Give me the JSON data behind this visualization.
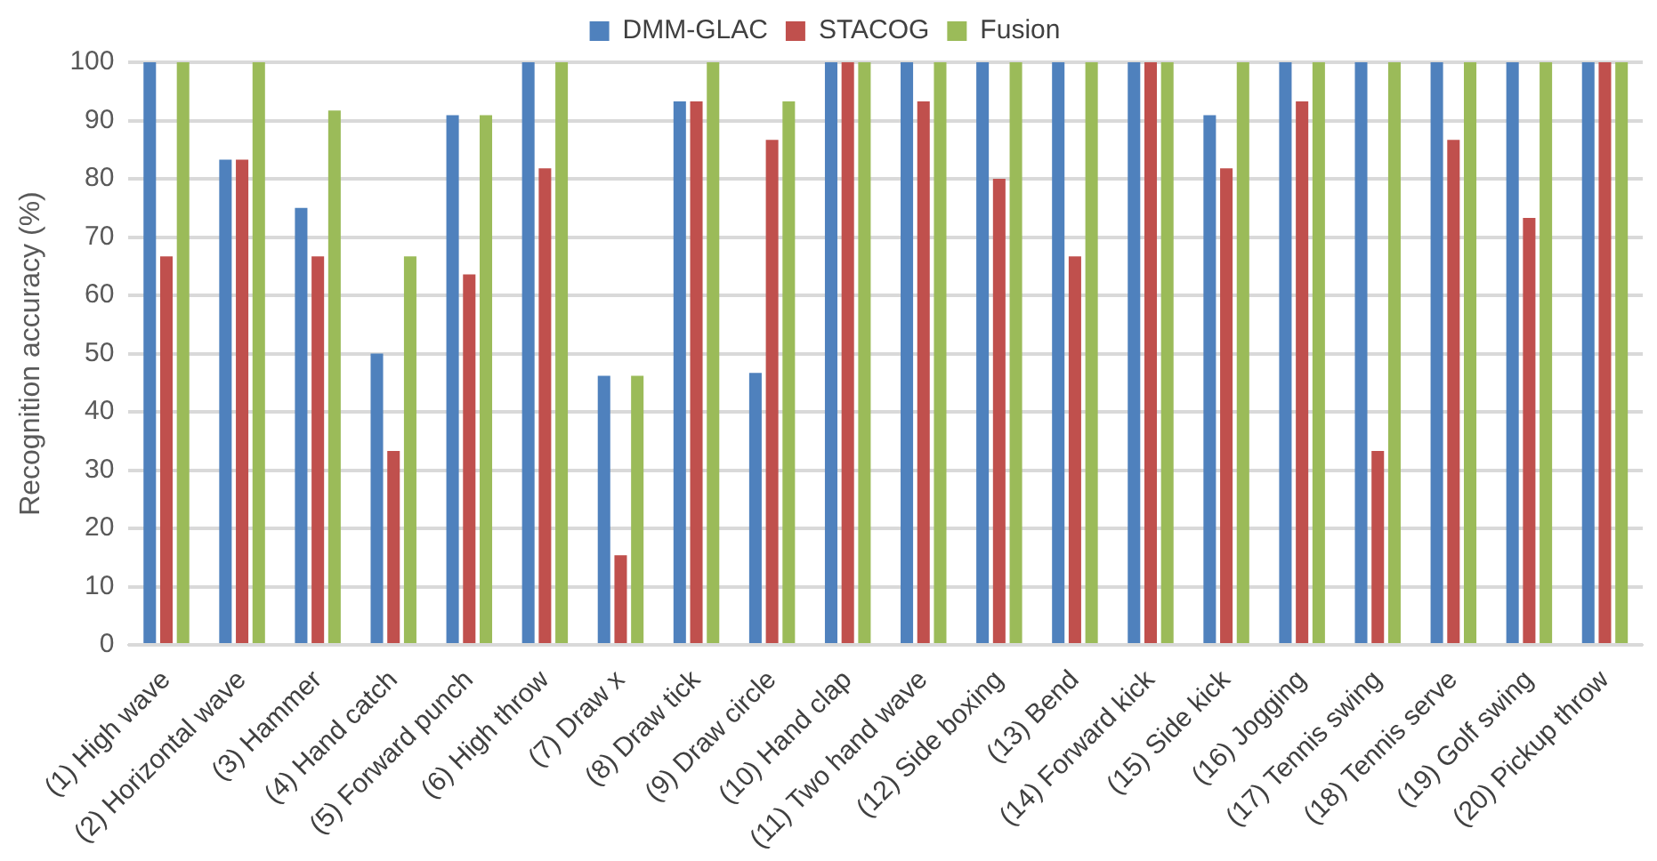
{
  "chart_data": {
    "type": "bar",
    "ylabel": "Recognition accuracy (%)",
    "categories": [
      "(1) High wave",
      "(2) Horizontal wave",
      "(3) Hammer",
      "(4) Hand catch",
      "(5) Forward punch",
      "(6) High throw",
      "(7) Draw x",
      "(8) Draw tick",
      "(9) Draw circle",
      "(10) Hand clap",
      "(11) Two hand wave",
      "(12) Side boxing",
      "(13) Bend",
      "(14) Forward kick",
      "(15) Side kick",
      "(16) Jogging",
      "(17) Tennis swing",
      "(18) Tennis serve",
      "(19) Golf swing",
      "(20) Pickup throw"
    ],
    "series": [
      {
        "name": "DMM-GLAC",
        "color": "#4f81bd",
        "values": [
          100,
          83.3,
          75,
          50,
          90.9,
          100,
          46.2,
          93.3,
          46.7,
          100,
          100,
          100,
          100,
          100,
          90.9,
          100,
          100,
          100,
          100,
          100
        ]
      },
      {
        "name": "STACOG",
        "color": "#c0504d",
        "values": [
          66.7,
          83.3,
          66.7,
          33.3,
          63.6,
          81.8,
          15.4,
          93.3,
          86.7,
          100,
          93.3,
          80,
          66.7,
          100,
          81.8,
          93.3,
          33.3,
          86.7,
          73.3,
          100
        ]
      },
      {
        "name": "Fusion",
        "color": "#9bbb59",
        "values": [
          100,
          100,
          91.7,
          66.7,
          90.9,
          100,
          46.2,
          100,
          93.3,
          100,
          100,
          100,
          100,
          100,
          100,
          100,
          100,
          100,
          100,
          100
        ]
      }
    ],
    "ylim": [
      0,
      100
    ],
    "yticks": [
      0,
      10,
      20,
      30,
      40,
      50,
      60,
      70,
      80,
      90,
      100
    ],
    "grid": "y",
    "legend": "top"
  }
}
